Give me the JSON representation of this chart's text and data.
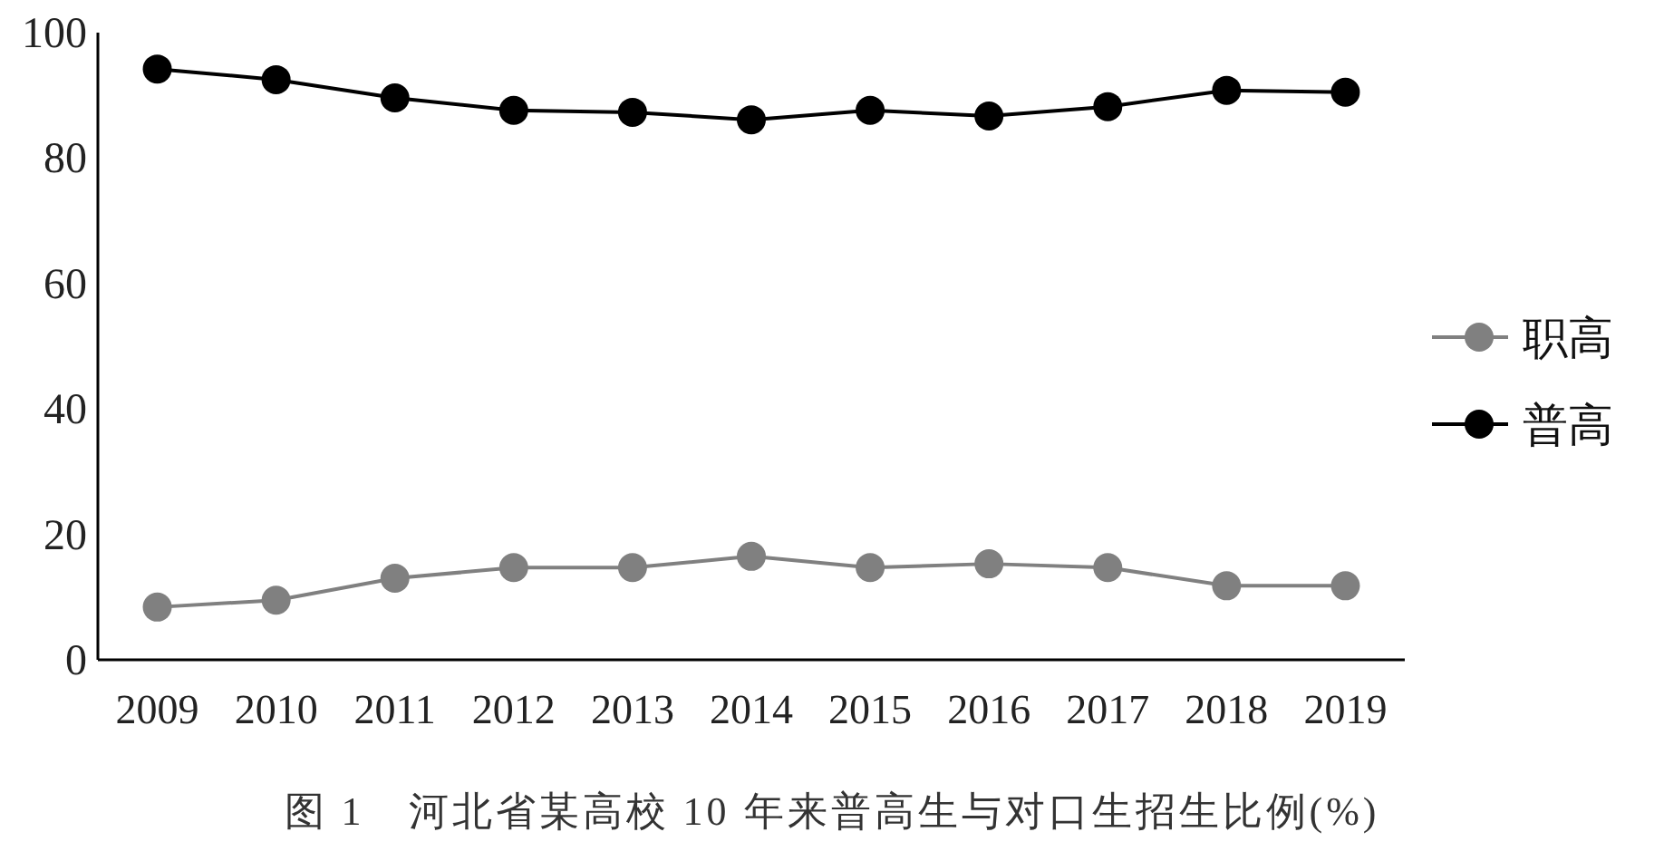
{
  "chart_data": {
    "type": "line",
    "title": "图 1　河北省某高校 10 年来普高生与对口生招生比例(%)",
    "categories": [
      "2009",
      "2010",
      "2011",
      "2012",
      "2013",
      "2014",
      "2015",
      "2016",
      "2017",
      "2018",
      "2019"
    ],
    "series": [
      {
        "name": "职高",
        "color": "#808080",
        "values": [
          8.4,
          9.5,
          13,
          14.7,
          14.7,
          16.5,
          14.7,
          15.3,
          14.7,
          11.8,
          11.8
        ]
      },
      {
        "name": "普高",
        "color": "#000000",
        "values": [
          94.2,
          92.5,
          89.6,
          87.6,
          87.3,
          86.1,
          87.6,
          86.7,
          88.2,
          90.8,
          90.5
        ]
      }
    ],
    "ylim": [
      0,
      100
    ],
    "yticks": [
      0,
      20,
      40,
      60,
      80,
      100
    ],
    "grid": false,
    "legend": "right",
    "marker": "circle",
    "line_style": "solid"
  }
}
